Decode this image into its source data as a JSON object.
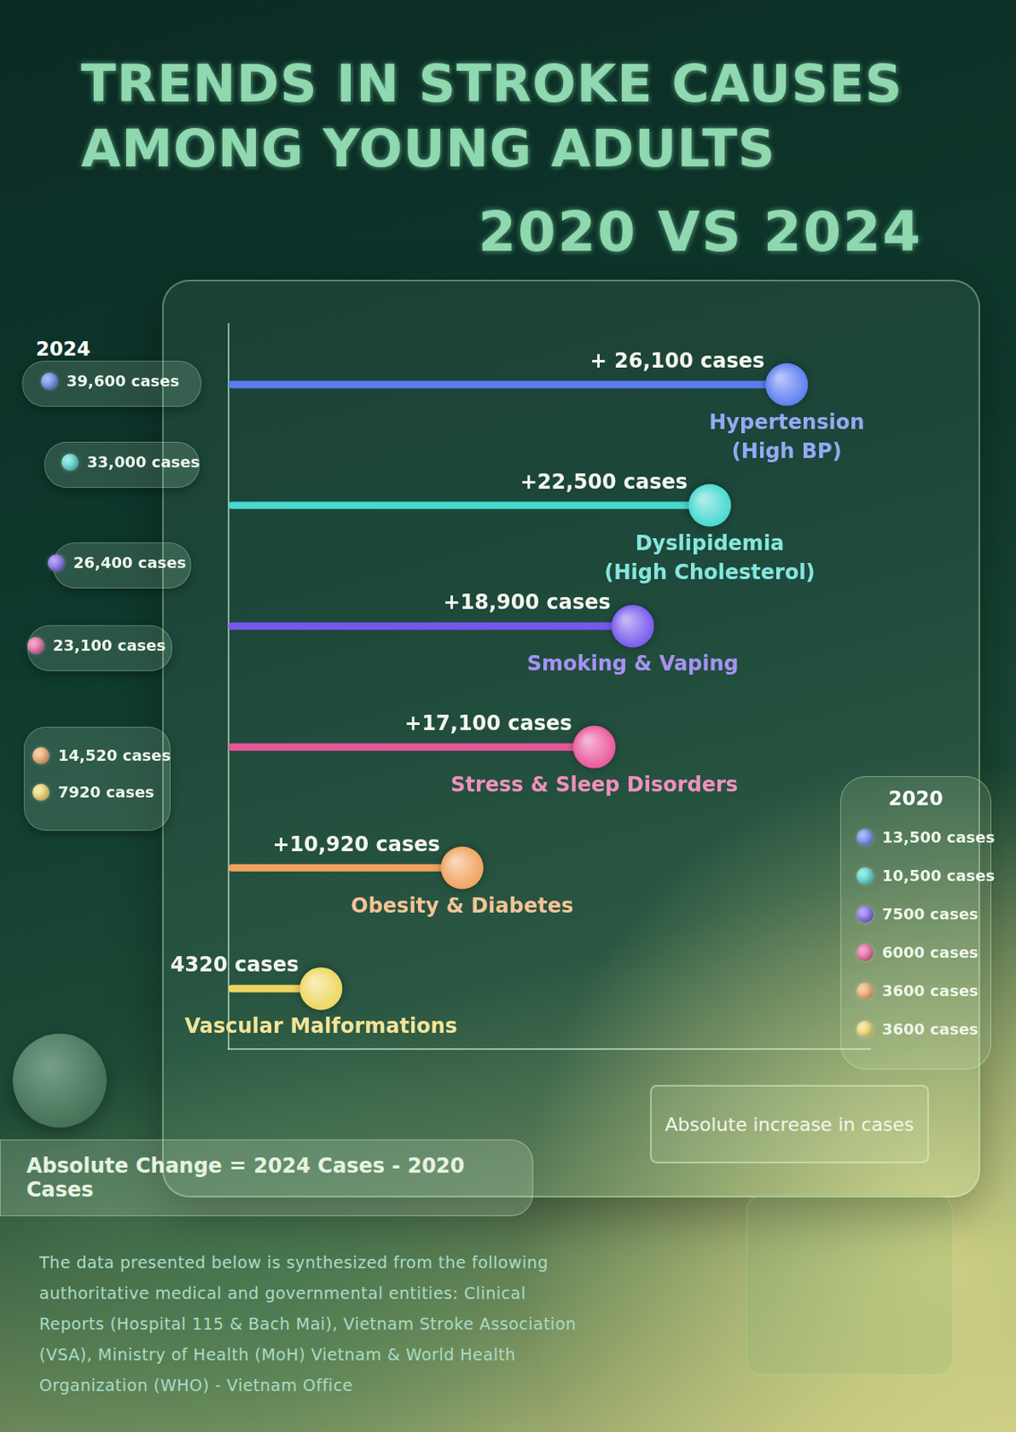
{
  "chart_data": {
    "type": "bar",
    "orientation": "horizontal",
    "title": "TRENDS IN STROKE CAUSES AMONG YOUNG ADULTS",
    "subtitle": "2020 VS 2024",
    "categories": [
      "Hypertension (High BP)",
      "Dyslipidemia (High Cholesterol)",
      "Smoking & Vaping",
      "Stress & Sleep Disorders",
      "Obesity & Diabetes",
      "Vascular Malformations"
    ],
    "series": [
      {
        "name": "Absolute increase in cases",
        "values": [
          26100,
          22500,
          18900,
          17100,
          10920,
          4320
        ],
        "value_labels": [
          "+ 26,100 cases",
          "+22,500 cases",
          "+18,900 cases",
          "+17,100 cases",
          "+10,920 cases",
          "+4320 cases"
        ]
      }
    ],
    "colors": [
      "#5b7cf0",
      "#45d8cf",
      "#7658ee",
      "#e8569a",
      "#f0a25e",
      "#eed660"
    ],
    "xlim": [
      0,
      30000
    ],
    "tick_labels": false,
    "grid": false,
    "data_labels": true,
    "legend": "bottom right",
    "cases_2024": {
      "label": "2024",
      "values": [
        39600,
        33000,
        26400,
        23100,
        14520,
        7920
      ],
      "value_labels": [
        "39,600 cases",
        "33,000 cases",
        "26,400 cases",
        "23,100 cases",
        "14,520 cases",
        "7920 cases"
      ]
    },
    "cases_2020": {
      "label": "2020",
      "values": [
        13500,
        10500,
        7500,
        6000,
        3600,
        3600
      ],
      "value_labels": [
        "13,500 cases",
        "10,500 cases",
        "7500 cases",
        "6000 cases",
        "3600 cases",
        "3600 cases"
      ]
    },
    "annotations": [
      "Absolute Change = 2024 Cases - 2020 Cases",
      "The data presented below is synthesized from the following authoritative medical and governmental entities: Clinical Reports (Hospital 115 & Bach Mai), Vietnam Stroke Association (VSA), Ministry of Health (MoH) Vietnam & World Health Organization (WHO) - Vietnam Office"
    ]
  }
}
